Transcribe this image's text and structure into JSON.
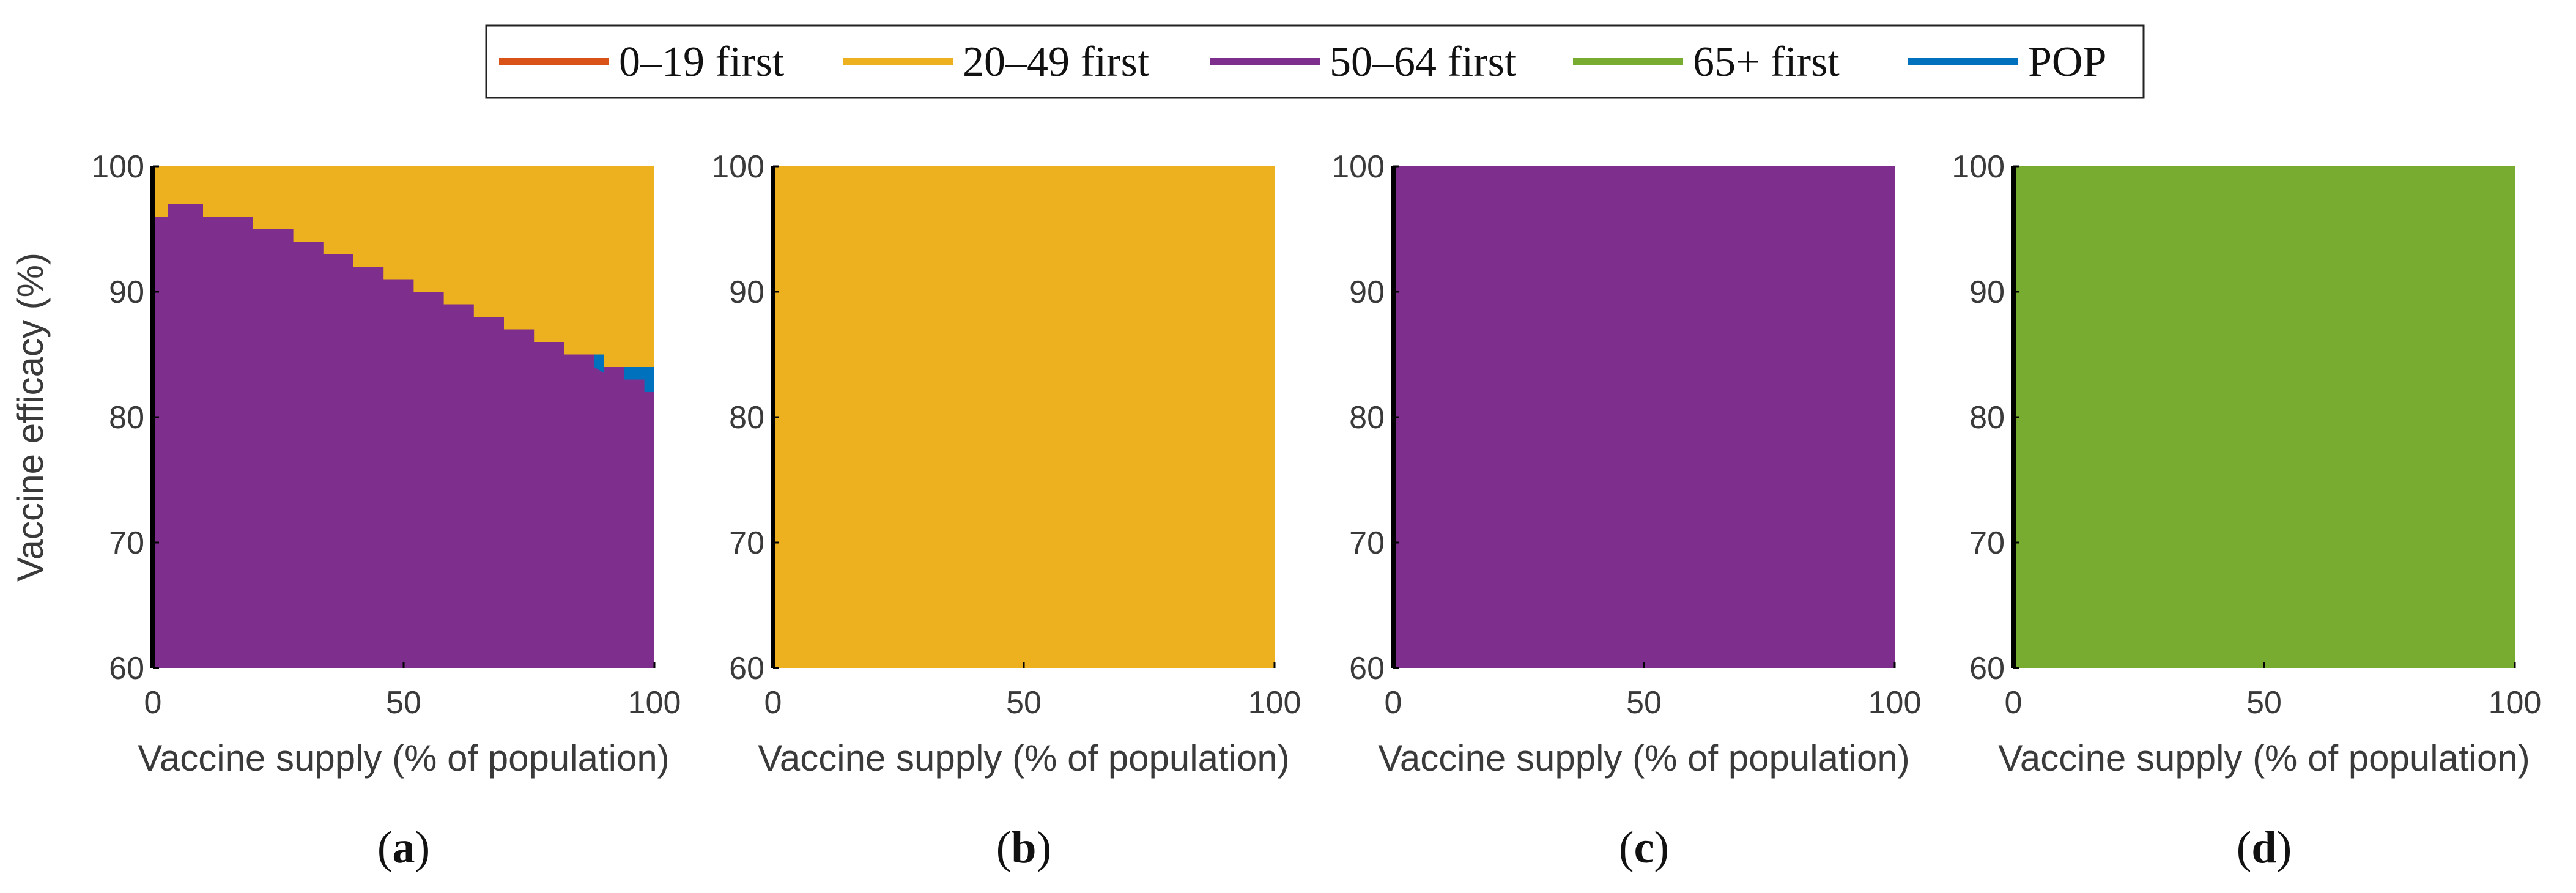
{
  "chart_data": {
    "type": "heatmap",
    "legend": [
      {
        "label": "0–19 first",
        "color": "#D95319"
      },
      {
        "label": "20–49 first",
        "color": "#EDB120"
      },
      {
        "label": "50–64 first",
        "color": "#7E2F8E"
      },
      {
        "label": "65+ first",
        "color": "#77AC30"
      },
      {
        "label": "POP",
        "color": "#0072BD"
      }
    ],
    "panels": [
      {
        "panel_label": "a",
        "xlabel": "Vaccine supply (% of population)",
        "ylabel": "Vaccine efficacy (%)",
        "xlim": [
          0,
          100
        ],
        "ylim": [
          60,
          100
        ],
        "xticks": [
          "0",
          "50",
          "100"
        ],
        "yticks": [
          "60",
          "70",
          "80",
          "90",
          "100"
        ],
        "background_strategy": "50–64 first",
        "regions": [
          {
            "strategy": "20–49 first",
            "boundary_below": [
              [
                0,
                96
              ],
              [
                3,
                96
              ],
              [
                3,
                97
              ],
              [
                10,
                97
              ],
              [
                10,
                96
              ],
              [
                20,
                96
              ],
              [
                20,
                95
              ],
              [
                28,
                95
              ],
              [
                28,
                94
              ],
              [
                34,
                94
              ],
              [
                34,
                93
              ],
              [
                40,
                93
              ],
              [
                40,
                92
              ],
              [
                46,
                92
              ],
              [
                46,
                91
              ],
              [
                52,
                91
              ],
              [
                52,
                90
              ],
              [
                58,
                90
              ],
              [
                58,
                89
              ],
              [
                64,
                89
              ],
              [
                64,
                88
              ],
              [
                70,
                88
              ],
              [
                70,
                87
              ],
              [
                76,
                87
              ],
              [
                76,
                86
              ],
              [
                82,
                86
              ],
              [
                82,
                85
              ],
              [
                90,
                85
              ],
              [
                90,
                84
              ],
              [
                100,
                84
              ]
            ]
          },
          {
            "strategy": "POP",
            "polygon": [
              [
                88,
                85
              ],
              [
                90,
                85
              ],
              [
                90,
                84
              ],
              [
                100,
                84
              ],
              [
                100,
                82
              ],
              [
                98,
                82
              ],
              [
                98,
                83
              ],
              [
                94,
                83
              ],
              [
                94,
                84
              ],
              [
                90,
                84
              ],
              [
                90,
                83.5
              ],
              [
                88,
                84
              ]
            ]
          }
        ]
      },
      {
        "panel_label": "b",
        "xlabel": "Vaccine supply (% of population)",
        "xlim": [
          0,
          100
        ],
        "ylim": [
          60,
          100
        ],
        "xticks": [
          "0",
          "50",
          "100"
        ],
        "yticks": [
          "60",
          "70",
          "80",
          "90",
          "100"
        ],
        "background_strategy": "20–49 first",
        "regions": []
      },
      {
        "panel_label": "c",
        "xlabel": "Vaccine supply (% of population)",
        "xlim": [
          0,
          100
        ],
        "ylim": [
          60,
          100
        ],
        "xticks": [
          "0",
          "50",
          "100"
        ],
        "yticks": [
          "60",
          "70",
          "80",
          "90",
          "100"
        ],
        "background_strategy": "50–64 first",
        "regions": []
      },
      {
        "panel_label": "d",
        "xlabel": "Vaccine supply (% of population)",
        "xlim": [
          0,
          100
        ],
        "ylim": [
          60,
          100
        ],
        "xticks": [
          "0",
          "50",
          "100"
        ],
        "yticks": [
          "60",
          "70",
          "80",
          "90",
          "100"
        ],
        "background_strategy": "65+ first",
        "regions": []
      }
    ]
  }
}
